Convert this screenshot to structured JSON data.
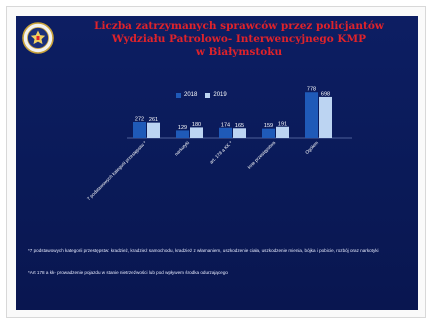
{
  "slide": {
    "title_lines": [
      "Liczba zatrzymanych sprawców przez policjantów",
      "Wydziału Patrolowo- Interwencyjnego KMP",
      "w Białymstoku"
    ],
    "footnotes": [
      "*7 podstawowych kategorii przestępstw: kradzież, kradzież samochodu, kradzież z włamaniem, uszkodzenie ciała, uszkodzenie mienia, bójka i pobicie, rozbój oraz narkotyki",
      "*Art 178 a kk- prowadzenie pojazdu w stanie nietrzeźwości lub pod wpływem środka odurzającego"
    ]
  },
  "colors": {
    "series_2018": "#1f5ab8",
    "series_2019": "#bcd4f2",
    "title": "#e0232a",
    "background": "#0c1c5e"
  },
  "chart_data": {
    "type": "bar",
    "categories": [
      "7 podstawowych kategorii przestępstw *",
      "narkotyki",
      "art. 178 a KK *",
      "inne przestępstwa",
      "Ogółem"
    ],
    "series": [
      {
        "name": "2018",
        "values": [
          272,
          129,
          174,
          159,
          778
        ]
      },
      {
        "name": "2019",
        "values": [
          261,
          180,
          165,
          191,
          698
        ]
      }
    ],
    "data_labels": [
      [
        "272",
        "261"
      ],
      [
        "129",
        "180"
      ],
      [
        "174",
        "165"
      ],
      [
        "159",
        "191"
      ],
      [
        "778",
        "698"
      ]
    ],
    "ylim": [
      0,
      850
    ],
    "grid": false,
    "legend": "top-center"
  }
}
